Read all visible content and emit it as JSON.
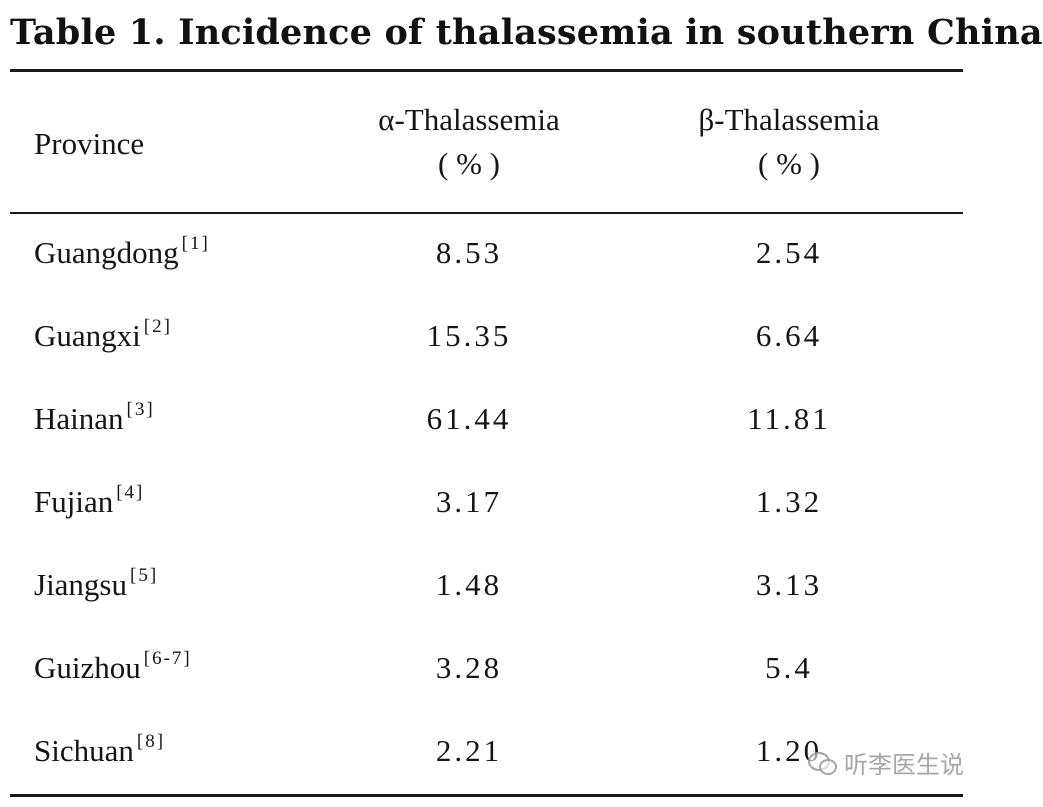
{
  "table": {
    "title": "Table 1.  Incidence of thalassemia in southern China",
    "headers": {
      "province": "Province",
      "alpha": "α-Thalassemia",
      "alpha_unit": "( % )",
      "beta": "β-Thalassemia",
      "beta_unit": "( % )"
    },
    "rows": [
      {
        "province": "Guangdong",
        "ref": "[1]",
        "alpha": "8.53",
        "beta": "2.54"
      },
      {
        "province": "Guangxi",
        "ref": "[2]",
        "alpha": "15.35",
        "beta": "6.64"
      },
      {
        "province": "Hainan",
        "ref": "[3]",
        "alpha": "61.44",
        "beta": "11.81"
      },
      {
        "province": "Fujian",
        "ref": "[4]",
        "alpha": "3.17",
        "beta": "1.32"
      },
      {
        "province": "Jiangsu",
        "ref": "[5]",
        "alpha": "1.48",
        "beta": "3.13"
      },
      {
        "province": "Guizhou",
        "ref": "[6-7]",
        "alpha": "3.28",
        "beta": "5.4"
      },
      {
        "province": "Sichuan",
        "ref": "[8]",
        "alpha": "2.21",
        "beta": "1.20"
      }
    ]
  },
  "watermark": {
    "text": "听李医生说",
    "icon": "wechat-icon"
  }
}
